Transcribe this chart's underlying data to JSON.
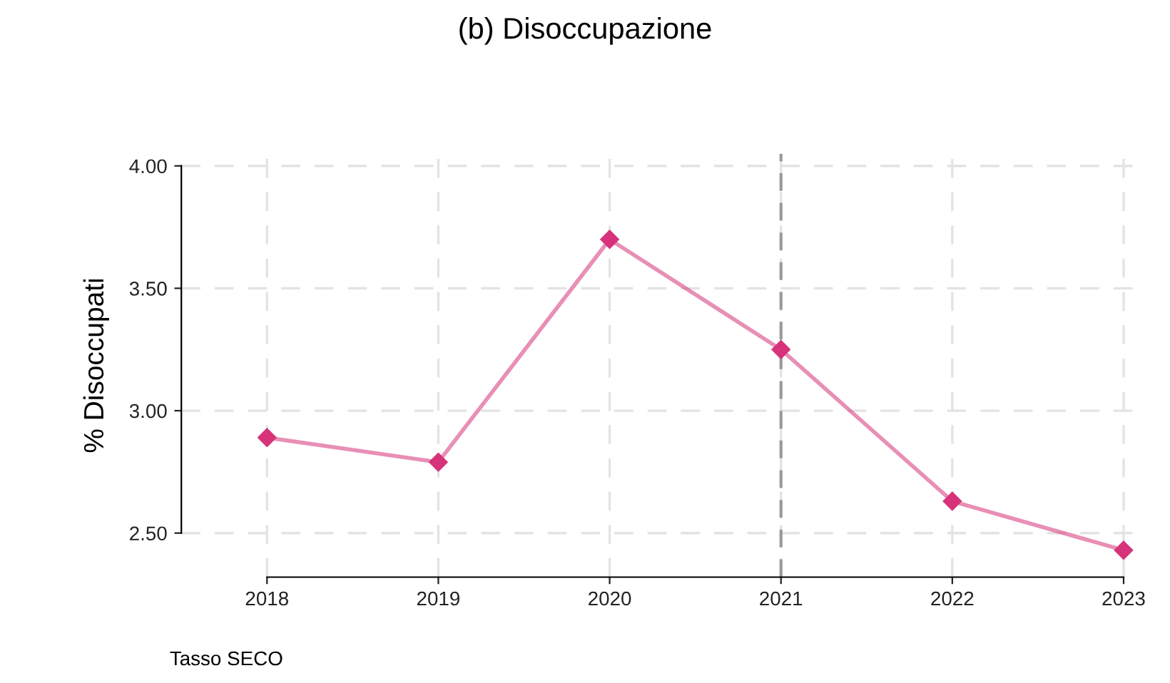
{
  "chart_data": {
    "type": "line",
    "title": "(b) Disoccupazione",
    "ylabel": "% Disoccupati",
    "x": [
      2018,
      2019,
      2020,
      2021,
      2022,
      2023
    ],
    "series": [
      {
        "color": "#d6337a",
        "values": [
          2.89,
          2.79,
          3.7,
          3.25,
          2.63,
          2.43
        ]
      }
    ],
    "xlim": [
      2017.5,
      2023.1
    ],
    "xticks": [
      2018,
      2019,
      2020,
      2021,
      2022,
      2023
    ],
    "ylim": [
      2.32,
      4.05
    ],
    "yticks": [
      {
        "value": 2.5,
        "label": "2.50"
      },
      {
        "value": 3.0,
        "label": "3.00"
      },
      {
        "value": 3.5,
        "label": "3.50"
      },
      {
        "value": 4.0,
        "label": "4.00"
      }
    ],
    "ref_lines": [
      {
        "axis": "x",
        "value": 2021,
        "color": "#999999",
        "line_style": "dashed"
      }
    ],
    "grid": true,
    "marker": "diamond",
    "line_style": "solid",
    "annotations": [
      "Tasso SECO"
    ]
  }
}
